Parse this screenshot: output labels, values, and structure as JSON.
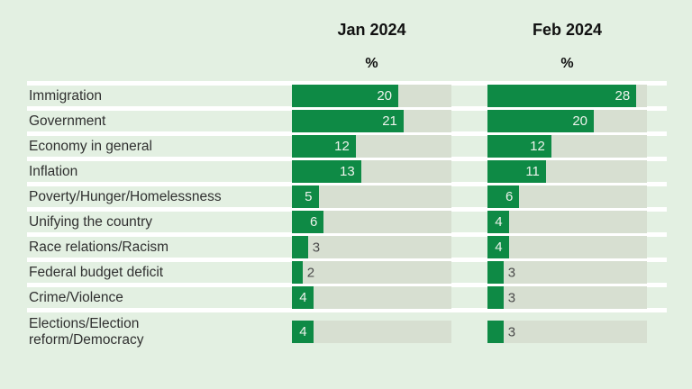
{
  "chart_data": {
    "type": "bar",
    "title": "",
    "columns": [
      {
        "label": "Jan 2024",
        "unit": "%"
      },
      {
        "label": "Feb 2024",
        "unit": "%"
      }
    ],
    "categories": [
      "Immigration",
      "Government",
      "Economy in general",
      "Inflation",
      "Poverty/Hunger/Homelessness",
      "Unifying the country",
      "Race relations/Racism",
      "Federal budget deficit",
      "Crime/Violence",
      "Elections/Election reform/Democracy"
    ],
    "series": [
      {
        "name": "Jan 2024",
        "values": [
          20,
          21,
          12,
          13,
          5,
          6,
          3,
          2,
          4,
          4
        ]
      },
      {
        "name": "Feb 2024",
        "values": [
          28,
          20,
          12,
          11,
          6,
          4,
          4,
          3,
          3,
          3
        ]
      }
    ],
    "xlim": [
      0,
      30
    ],
    "value_label_inside_threshold": 4,
    "legend_position": "none",
    "grid": false
  },
  "colors": {
    "background": "#e3f0e2",
    "bar": "#0e8a45",
    "track": "#d7dfd1",
    "separator": "#ffffff",
    "header_text": "#111111",
    "label_text": "#303030",
    "value_inside": "#edf3ec",
    "value_outside": "#4c4c4c"
  }
}
